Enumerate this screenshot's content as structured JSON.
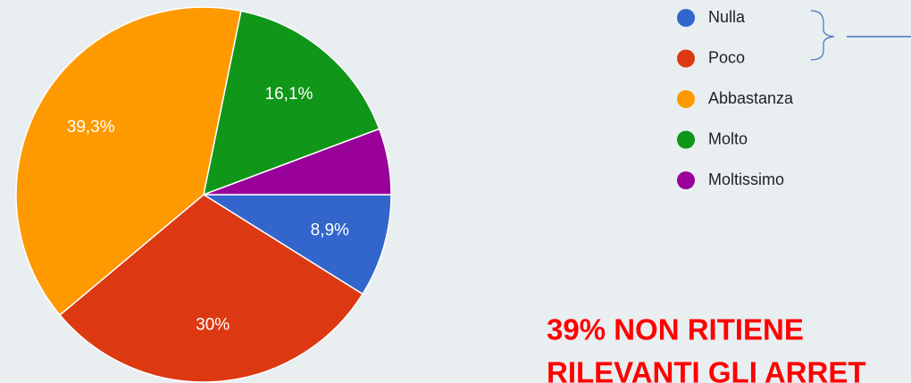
{
  "chart_data": {
    "type": "pie",
    "categories": [
      "Nulla",
      "Poco",
      "Abbastanza",
      "Molto",
      "Moltissimo"
    ],
    "values": [
      8.9,
      30,
      39.3,
      16.1,
      5.7
    ],
    "value_labels": [
      "8,9%",
      "30%",
      "39,3%",
      "16,1%",
      null
    ],
    "colors": [
      "#3366cc",
      "#dc3912",
      "#ff9900",
      "#109618",
      "#990099"
    ],
    "legend": "top-right",
    "annotation": [
      "39% NON RITIENE",
      "RILEVANTI GLI ARRET"
    ]
  }
}
